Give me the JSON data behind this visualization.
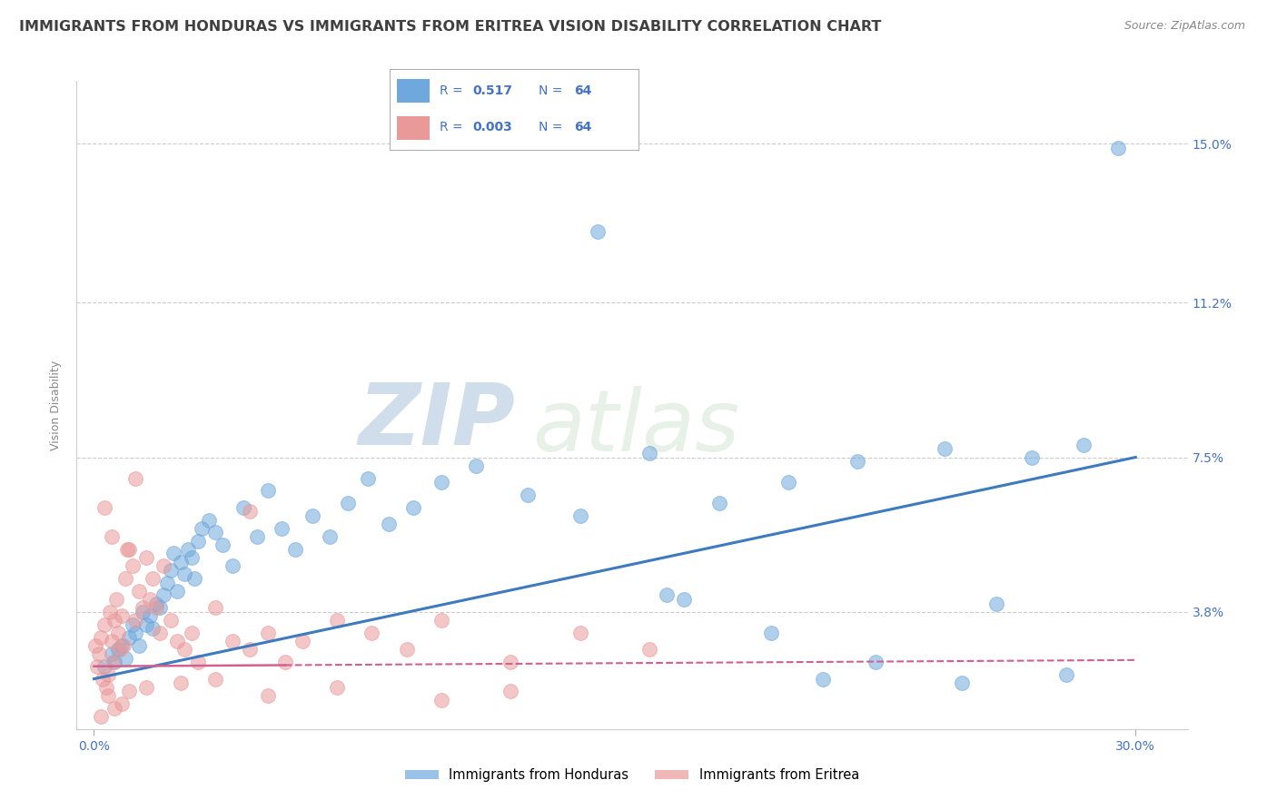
{
  "title": "IMMIGRANTS FROM HONDURAS VS IMMIGRANTS FROM ERITREA VISION DISABILITY CORRELATION CHART",
  "source": "Source: ZipAtlas.com",
  "xlabel_ticks": [
    "0.0%",
    "30.0%"
  ],
  "xlabel_vals": [
    0.0,
    30.0
  ],
  "ylabel_ticks": [
    "3.8%",
    "7.5%",
    "11.2%",
    "15.0%"
  ],
  "ylabel_vals": [
    3.8,
    7.5,
    11.2,
    15.0
  ],
  "xlim": [
    -0.5,
    31.5
  ],
  "ylim": [
    1.0,
    16.5
  ],
  "watermark_zip": "ZIP",
  "watermark_atlas": "atlas",
  "legend_R_honduras": "0.517",
  "legend_N_honduras": "64",
  "legend_R_eritrea": "0.003",
  "legend_N_eritrea": "64",
  "legend_label_honduras": "Immigrants from Honduras",
  "legend_label_eritrea": "Immigrants from Eritrea",
  "ylabel": "Vision Disability",
  "color_honduras": "#6fa8dc",
  "color_eritrea": "#ea9999",
  "color_line_honduras": "#3d7abf",
  "color_line_eritrea": "#d06090",
  "grid_color": "#cccccc",
  "tick_color": "#4472c4",
  "background_color": "#ffffff",
  "title_color": "#404040",
  "title_fontsize": 11.5,
  "axis_label_fontsize": 9,
  "tick_fontsize": 10,
  "honduras_x": [
    0.3,
    0.5,
    0.6,
    0.7,
    0.8,
    0.9,
    1.0,
    1.1,
    1.2,
    1.3,
    1.4,
    1.5,
    1.6,
    1.7,
    1.8,
    1.9,
    2.0,
    2.1,
    2.2,
    2.3,
    2.4,
    2.5,
    2.6,
    2.7,
    2.8,
    2.9,
    3.0,
    3.1,
    3.3,
    3.5,
    3.7,
    4.0,
    4.3,
    4.7,
    5.0,
    5.4,
    5.8,
    6.3,
    6.8,
    7.3,
    7.9,
    8.5,
    9.2,
    10.0,
    11.0,
    12.5,
    14.0,
    16.0,
    18.0,
    20.0,
    22.0,
    24.5,
    27.0,
    28.5,
    17.0,
    19.5,
    28.0,
    25.0,
    22.5,
    29.5,
    14.5,
    16.5,
    21.0,
    26.0
  ],
  "honduras_y": [
    2.5,
    2.8,
    2.6,
    2.9,
    3.0,
    2.7,
    3.2,
    3.5,
    3.3,
    3.0,
    3.8,
    3.5,
    3.7,
    3.4,
    4.0,
    3.9,
    4.2,
    4.5,
    4.8,
    5.2,
    4.3,
    5.0,
    4.7,
    5.3,
    5.1,
    4.6,
    5.5,
    5.8,
    6.0,
    5.7,
    5.4,
    4.9,
    6.3,
    5.6,
    6.7,
    5.8,
    5.3,
    6.1,
    5.6,
    6.4,
    7.0,
    5.9,
    6.3,
    6.9,
    7.3,
    6.6,
    6.1,
    7.6,
    6.4,
    6.9,
    7.4,
    7.7,
    7.5,
    7.8,
    4.1,
    3.3,
    2.3,
    2.1,
    2.6,
    14.9,
    12.9,
    4.2,
    2.2,
    4.0
  ],
  "eritrea_x": [
    0.05,
    0.1,
    0.15,
    0.2,
    0.25,
    0.3,
    0.35,
    0.4,
    0.45,
    0.5,
    0.55,
    0.6,
    0.65,
    0.7,
    0.75,
    0.8,
    0.85,
    0.9,
    0.95,
    1.0,
    1.1,
    1.2,
    1.3,
    1.4,
    1.5,
    1.6,
    1.7,
    1.8,
    1.9,
    2.0,
    2.2,
    2.4,
    2.6,
    2.8,
    3.0,
    3.5,
    4.0,
    4.5,
    5.0,
    5.5,
    6.0,
    7.0,
    8.0,
    9.0,
    10.0,
    12.0,
    14.0,
    16.0,
    0.4,
    0.6,
    0.2,
    0.8,
    1.0,
    1.5,
    2.5,
    3.5,
    5.0,
    7.0,
    10.0,
    12.0,
    0.3,
    0.5,
    4.5,
    1.2
  ],
  "eritrea_y": [
    3.0,
    2.5,
    2.8,
    3.2,
    2.2,
    3.5,
    2.0,
    2.3,
    3.8,
    3.1,
    2.6,
    3.6,
    4.1,
    3.3,
    2.9,
    3.7,
    3.0,
    4.6,
    5.3,
    5.3,
    4.9,
    3.6,
    4.3,
    3.9,
    5.1,
    4.1,
    4.6,
    3.9,
    3.3,
    4.9,
    3.6,
    3.1,
    2.9,
    3.3,
    2.6,
    3.9,
    3.1,
    2.9,
    3.3,
    2.6,
    3.1,
    3.6,
    3.3,
    2.9,
    3.6,
    2.6,
    3.3,
    2.9,
    1.8,
    1.5,
    1.3,
    1.6,
    1.9,
    2.0,
    2.1,
    2.2,
    1.8,
    2.0,
    1.7,
    1.9,
    6.3,
    5.6,
    6.2,
    7.0
  ],
  "line_honduras_x0": 0.0,
  "line_honduras_x1": 30.0,
  "line_eritrea_x0": 0.0,
  "line_eritrea_x1": 30.0,
  "line_eritrea_solid_x1": 5.5
}
